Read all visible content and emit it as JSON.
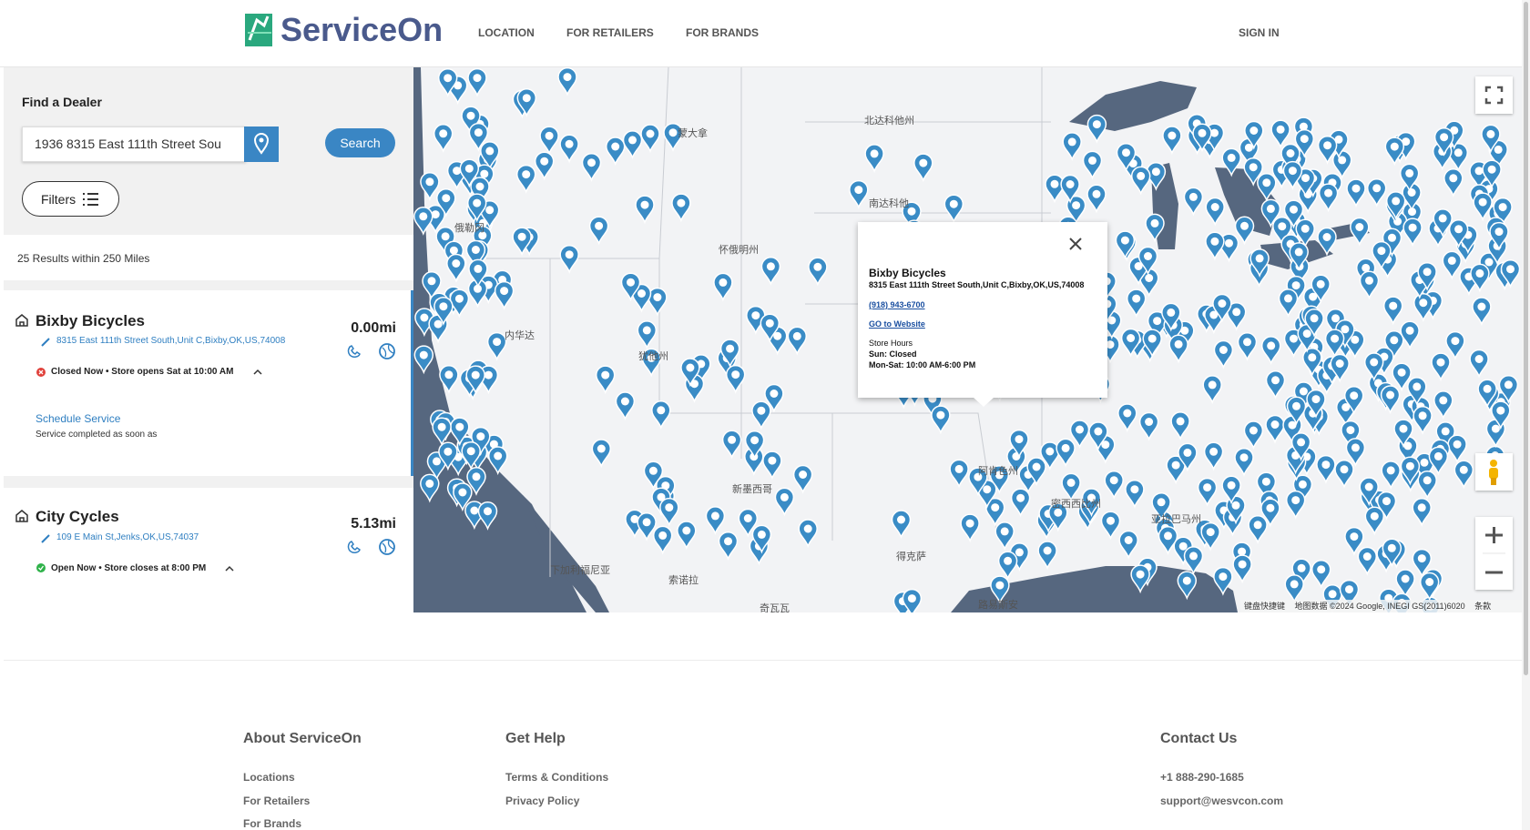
{
  "header": {
    "brand": "ServiceOn",
    "nav": [
      "LOCATION",
      "FOR RETAILERS",
      "FOR BRANDS"
    ],
    "sign_in": "SIGN IN"
  },
  "search": {
    "title": "Find a Dealer",
    "input": "1936 8315 East 111th Street Sou",
    "button": "Search",
    "filters": "Filters",
    "results": "25 Results within 250 Miles"
  },
  "dealers": [
    {
      "name": "Bixby Bicycles",
      "address": "8315 East 111th Street South,Unit C,Bixby,OK,US,74008",
      "distance": "0.00mi",
      "status": "Closed Now • Store opens Sat at 10:00 AM",
      "schedule": "Schedule Service",
      "note": "Service completed as soon as"
    },
    {
      "name": "City Cycles",
      "address": "109 E Main St,Jenks,OK,US,74037",
      "distance": "5.13mi",
      "status": "Open Now • Store closes at 8:00 PM"
    }
  ],
  "popup": {
    "name": "Bixby Bicycles",
    "address": "8315 East 111th Street South,Unit C,Bixby,OK,US,74008",
    "phone": "(918) 943-6700",
    "website": "GO to Website",
    "hours_title": "Store Hours",
    "hours": [
      "Sun: Closed",
      "Mon-Sat: 10:00 AM-6:00 PM"
    ]
  },
  "map": {
    "labels": [
      "蒙大拿",
      "北达科他州",
      "南达科他",
      "俄勒冈",
      "怀俄明州",
      "内华达",
      "犹他州",
      "阿肯色州",
      "密西西比州",
      "亚拉巴马州",
      "得克萨",
      "路易斯安",
      "新墨西哥",
      "下加利福尼亚",
      "索诺拉",
      "奇瓦瓦"
    ],
    "attribution": [
      "键盘快捷键",
      "地图数据 ©2024 Google, INEGI GS(2011)6020",
      "条款"
    ]
  },
  "footer": {
    "columns": [
      {
        "title": "About ServiceOn",
        "links": [
          "Locations",
          "For Retailers",
          "For Brands"
        ]
      },
      {
        "title": "Get Help",
        "links": [
          "Terms & Conditions",
          "Privacy Policy"
        ]
      },
      {
        "title": "Contact Us",
        "links": [
          "+1 888-290-1685",
          "support@wesvcon.com"
        ]
      }
    ]
  }
}
